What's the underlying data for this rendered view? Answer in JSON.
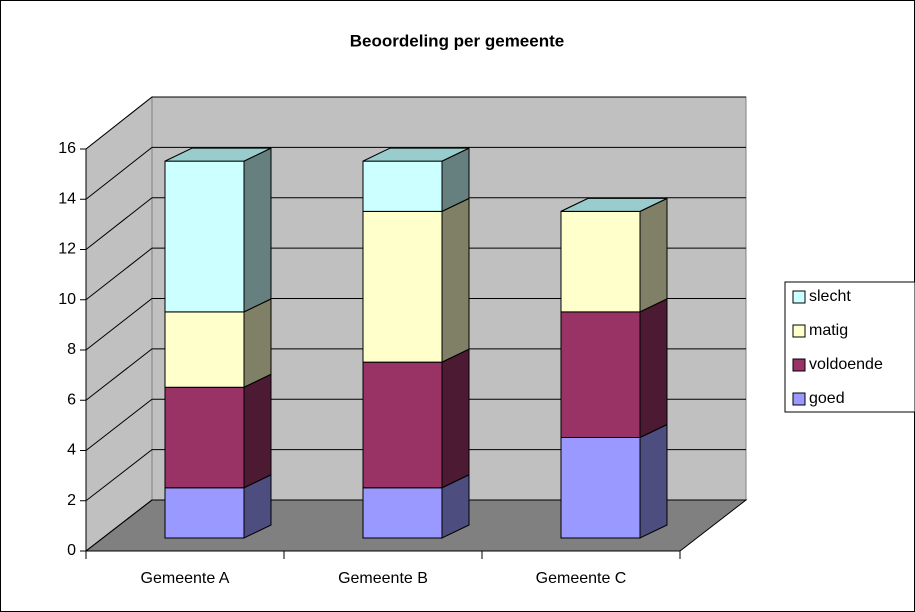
{
  "chart_data": {
    "type": "bar3d-stacked",
    "title": "Beoordeling per gemeente",
    "categories": [
      "Gemeente A",
      "Gemeente B",
      "Gemeente C"
    ],
    "series": [
      {
        "name": "goed",
        "color": "#9999FF",
        "side": "#4D4D80",
        "top": "#7A7ACC",
        "values": [
          2,
          2,
          4
        ]
      },
      {
        "name": "voldoende",
        "color": "#993366",
        "side": "#4D1A33",
        "top": "#7A2952",
        "values": [
          4,
          5,
          5
        ]
      },
      {
        "name": "matig",
        "color": "#FFFFCC",
        "side": "#808066",
        "top": "#CCCCA3",
        "values": [
          3,
          6,
          4
        ]
      },
      {
        "name": "slecht",
        "color": "#CCFFFF",
        "side": "#668080",
        "top": "#99CCCC",
        "values": [
          6,
          2,
          0
        ]
      }
    ],
    "ylim": [
      0,
      16
    ],
    "yticks": [
      0,
      2,
      4,
      6,
      8,
      10,
      12,
      14,
      16
    ],
    "grid": true,
    "legend": "right"
  }
}
